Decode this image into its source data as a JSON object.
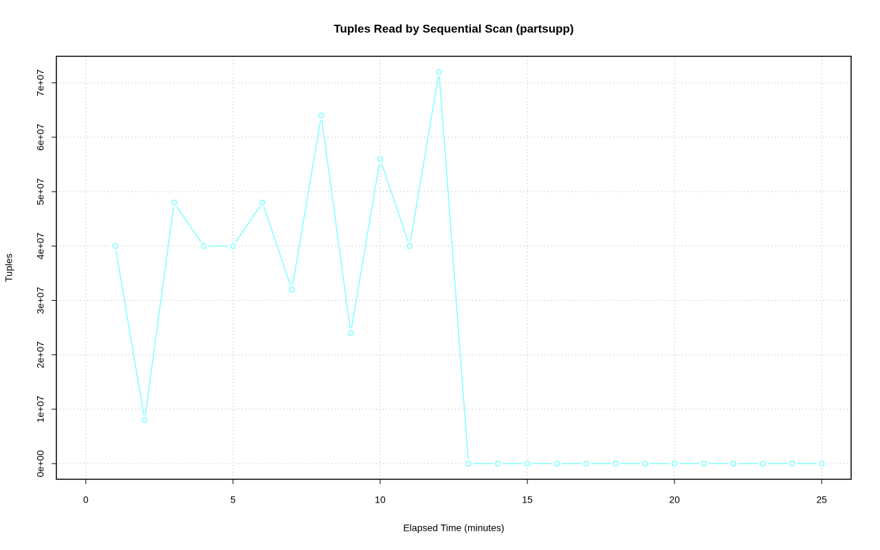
{
  "chart_data": {
    "type": "line",
    "title": "Tuples Read by Sequential Scan (partsupp)",
    "x_label": "Elapsed Time (minutes)",
    "y_label": "Tuples",
    "x": [
      1,
      2,
      3,
      4,
      5,
      6,
      7,
      8,
      9,
      10,
      11,
      12,
      13,
      14,
      15,
      16,
      17,
      18,
      19,
      20,
      21,
      22,
      23,
      24,
      25
    ],
    "values": [
      40000000,
      8000000,
      48000000,
      40000000,
      40000000,
      48000000,
      32000000,
      64000000,
      24000000,
      56000000,
      40000000,
      72000000,
      0,
      0,
      0,
      0,
      0,
      0,
      0,
      0,
      0,
      0,
      0,
      0,
      0
    ],
    "color": "#7fffff",
    "xlim": [
      -1,
      26
    ],
    "ylim": [
      -2880000,
      74880000
    ],
    "xticks": [
      0,
      5,
      10,
      15,
      20,
      25
    ],
    "yticks": [
      {
        "value": 0,
        "label": "0e+00"
      },
      {
        "value": 10000000,
        "label": "1e+07"
      },
      {
        "value": 20000000,
        "label": "2e+07"
      },
      {
        "value": 30000000,
        "label": "3e+07"
      },
      {
        "value": 40000000,
        "label": "4e+07"
      },
      {
        "value": 50000000,
        "label": "5e+07"
      },
      {
        "value": 60000000,
        "label": "6e+07"
      },
      {
        "value": 70000000,
        "label": "7e+07"
      }
    ],
    "grid": true
  }
}
